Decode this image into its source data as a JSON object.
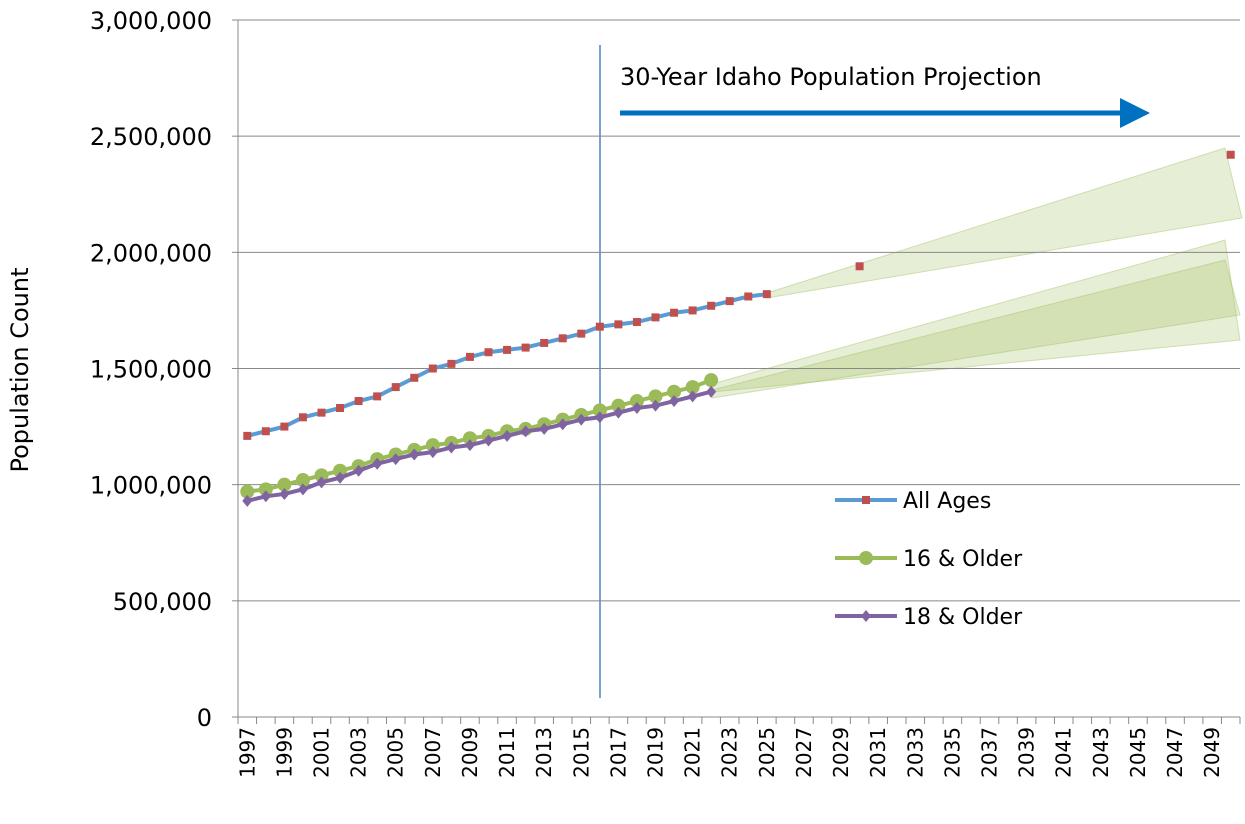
{
  "chart_data": {
    "type": "line",
    "ylabel": "Population Count",
    "annotation": "30-Year Idaho Population Projection",
    "categories": [
      "1997",
      null,
      "1999",
      null,
      "2001",
      null,
      "2003",
      null,
      "2005",
      null,
      "2007",
      null,
      "2009",
      null,
      "2011",
      null,
      "2013",
      null,
      "2015",
      null,
      "2017",
      null,
      "2019",
      null,
      "2021",
      null,
      "2023",
      null,
      "2025",
      null,
      "2027",
      null,
      "2029",
      null,
      "2031",
      null,
      "2033",
      null,
      "2035",
      null,
      "2037",
      null,
      "2039",
      null,
      "2041",
      null,
      "2043",
      null,
      "2045",
      null,
      "2047",
      null,
      "2049",
      null
    ],
    "series": [
      {
        "name": "All Ages",
        "color": "#5b9bd5",
        "marker_color": "#c0504d",
        "marker": "square",
        "values": [
          1210000,
          1230000,
          1250000,
          1290000,
          1310000,
          1330000,
          1360000,
          1380000,
          1420000,
          1460000,
          1500000,
          1520000,
          1550000,
          1570000,
          1580000,
          1590000,
          1610000,
          1630000,
          1650000,
          1680000,
          1690000,
          1700000,
          1720000,
          1740000,
          1750000,
          1770000,
          1790000,
          1810000,
          1820000,
          null,
          null,
          null,
          null,
          1940000,
          null,
          null,
          null,
          null,
          null,
          null,
          null,
          null,
          null,
          null,
          null,
          null,
          null,
          null,
          null,
          null,
          null,
          null,
          null,
          2420000
        ]
      },
      {
        "name": "16 & Older",
        "color": "#9bbb59",
        "marker_color": "#9bbb59",
        "marker": "circle",
        "values": [
          970000,
          980000,
          1000000,
          1020000,
          1040000,
          1060000,
          1080000,
          1110000,
          1130000,
          1150000,
          1170000,
          1180000,
          1200000,
          1210000,
          1230000,
          1240000,
          1260000,
          1280000,
          1300000,
          1320000,
          1340000,
          1360000,
          1380000,
          1400000,
          1420000,
          1450000,
          null,
          null,
          null,
          null,
          null,
          null,
          null,
          null,
          null,
          null,
          null,
          null,
          null,
          null,
          null,
          null,
          null,
          null,
          null,
          null,
          null,
          null,
          null,
          null,
          null,
          null,
          null,
          null
        ]
      },
      {
        "name": "18 & Older",
        "color": "#8064a2",
        "marker_color": "#8064a2",
        "marker": "diamond",
        "values": [
          930000,
          950000,
          960000,
          980000,
          1010000,
          1030000,
          1060000,
          1090000,
          1110000,
          1130000,
          1140000,
          1160000,
          1170000,
          1190000,
          1210000,
          1230000,
          1240000,
          1260000,
          1280000,
          1290000,
          1310000,
          1330000,
          1340000,
          1360000,
          1380000,
          1400000,
          null,
          null,
          null,
          null,
          null,
          null,
          null,
          null,
          null,
          null,
          null,
          null,
          null,
          null,
          null,
          null,
          null,
          null,
          null,
          null,
          null,
          null,
          null,
          null,
          null,
          null,
          null,
          null
        ]
      }
    ],
    "ylim": [
      0,
      3000000
    ],
    "yticks": [
      0,
      {
        "value": 500000,
        "label": "500,000"
      },
      {
        "value": 1000000,
        "label": "1,000,000"
      },
      {
        "value": 1500000,
        "label": "1,500,000"
      },
      {
        "value": 2000000,
        "label": "2,000,000"
      },
      {
        "value": 2500000,
        "label": "2,500,000"
      },
      {
        "value": 3000000,
        "label": "3,000,000"
      }
    ],
    "grid": true,
    "legend": "right"
  }
}
